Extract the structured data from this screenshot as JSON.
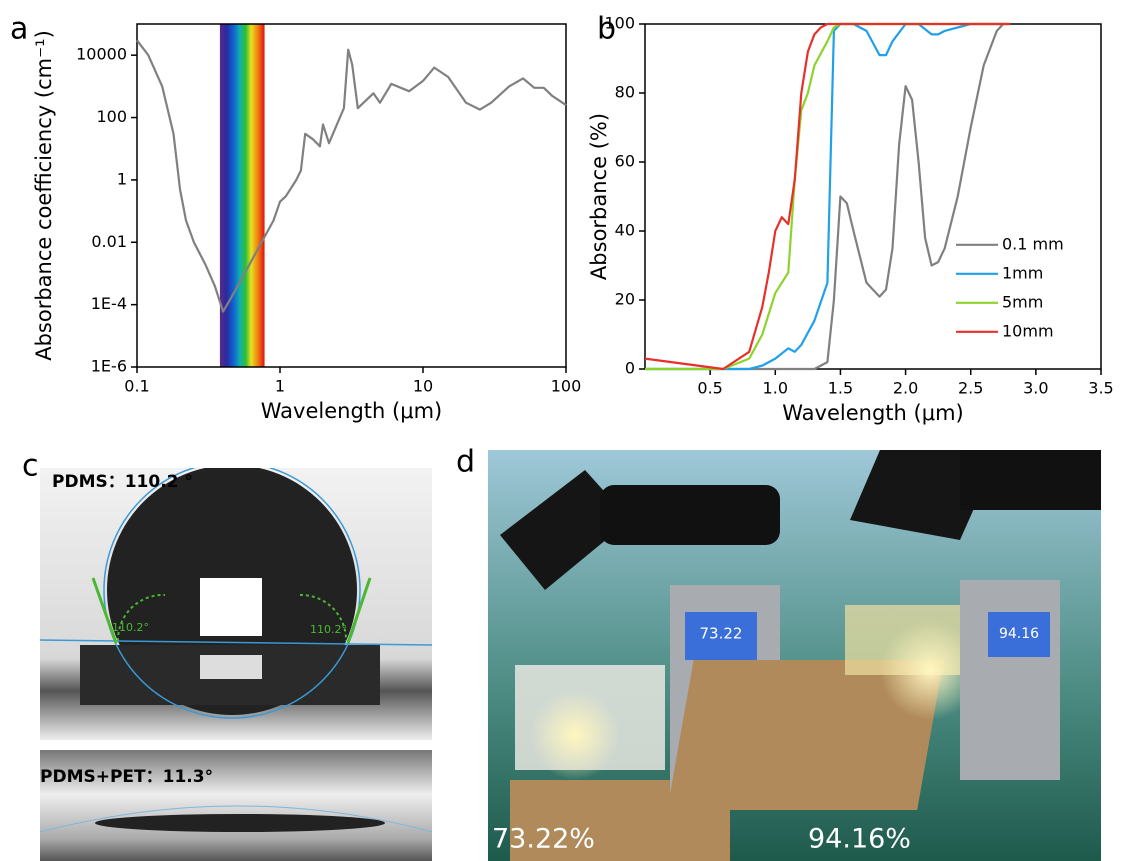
{
  "chart_data": [
    {
      "type": "line",
      "panel_label": "a",
      "x_label": "Wavelength (μm)",
      "y_label": "Absorbance coefficiency (cm⁻¹)",
      "x_log": true,
      "y_log": true,
      "color": "#808080",
      "xlim": [
        0.1,
        100
      ],
      "xticks": [
        0.1,
        1,
        10,
        100
      ],
      "ylim": [
        1e-06,
        100000
      ],
      "yticks": [
        {
          "value": 1e-06,
          "label": "1E-6"
        },
        {
          "value": 0.0001,
          "label": "1E-4"
        },
        0.01,
        1,
        100,
        10000
      ],
      "highlight_band": [
        0.38,
        0.78
      ],
      "x": [
        0.1,
        0.12,
        0.15,
        0.18,
        0.2,
        0.22,
        0.25,
        0.3,
        0.35,
        0.4,
        0.45,
        0.55,
        0.7,
        0.9,
        1.0,
        1.1,
        1.3,
        1.4,
        1.5,
        1.7,
        1.9,
        2.0,
        2.2,
        2.5,
        2.8,
        3.0,
        3.2,
        3.5,
        4.5,
        5,
        6,
        8,
        10,
        12,
        15,
        20,
        25,
        30,
        40,
        50,
        60,
        70,
        80,
        100
      ],
      "values": [
        30000,
        10000,
        1000,
        30,
        0.5,
        0.05,
        0.01,
        0.002,
        0.0004,
        6e-05,
        0.00015,
        0.0008,
        0.006,
        0.05,
        0.2,
        0.3,
        1,
        2,
        30,
        20,
        12,
        60,
        15,
        60,
        200,
        15000,
        5000,
        200,
        600,
        300,
        1200,
        700,
        1500,
        4000,
        2000,
        300,
        180,
        300,
        1000,
        1800,
        900,
        900,
        500,
        250
      ]
    },
    {
      "type": "line",
      "panel_label": "b",
      "x_label": "Wavelength (μm)",
      "y_label": "Absorbance (%)",
      "legend": "right",
      "xlim": [
        0,
        3.5
      ],
      "xticks": [
        0.5,
        {
          "value": 1,
          "label": "1.0"
        },
        1.5,
        {
          "value": 2,
          "label": "2.0"
        },
        2.5,
        {
          "value": 3,
          "label": "3.0"
        },
        3.5
      ],
      "ylim": [
        0,
        100
      ],
      "yticks": [
        0,
        20,
        40,
        60,
        80,
        100
      ],
      "series": [
        {
          "name": "0.1 mm",
          "color": "#808080",
          "x": [
            0,
            1.0,
            1.3,
            1.4,
            1.45,
            1.5,
            1.55,
            1.6,
            1.7,
            1.8,
            1.85,
            1.9,
            1.95,
            2.0,
            2.05,
            2.1,
            2.15,
            2.2,
            2.25,
            2.3,
            2.4,
            2.5,
            2.6,
            2.7,
            2.75
          ],
          "values": [
            0,
            0,
            0,
            2,
            20,
            50,
            48,
            40,
            25,
            21,
            23,
            35,
            65,
            82,
            78,
            60,
            38,
            30,
            31,
            35,
            50,
            70,
            88,
            98,
            100
          ]
        },
        {
          "name": "1mm",
          "color": "#1fa0e8",
          "x": [
            0,
            0.8,
            0.9,
            1.0,
            1.1,
            1.15,
            1.2,
            1.3,
            1.4,
            1.45,
            1.5,
            1.6,
            1.7,
            1.8,
            1.85,
            1.9,
            2.0,
            2.1,
            2.2,
            2.25,
            2.3,
            2.5,
            2.8
          ],
          "values": [
            0,
            0,
            1,
            3,
            6,
            5,
            7,
            14,
            25,
            98,
            100,
            100,
            98,
            91,
            91,
            95,
            100,
            100,
            97,
            97,
            98,
            100,
            100
          ]
        },
        {
          "name": "5mm",
          "color": "#8cd42c",
          "x": [
            0,
            0.6,
            0.8,
            0.9,
            1.0,
            1.05,
            1.1,
            1.15,
            1.2,
            1.25,
            1.3,
            1.4,
            1.45,
            1.5,
            2.8
          ],
          "values": [
            0,
            0,
            3,
            10,
            22,
            25,
            28,
            55,
            75,
            80,
            88,
            95,
            99,
            100,
            100
          ]
        },
        {
          "name": "10mm",
          "color": "#e8302a",
          "x": [
            0,
            0.6,
            0.8,
            0.9,
            0.95,
            1.0,
            1.05,
            1.1,
            1.15,
            1.2,
            1.25,
            1.3,
            1.35,
            1.4,
            2.8
          ],
          "values": [
            3,
            0,
            5,
            18,
            28,
            40,
            44,
            42,
            55,
            80,
            92,
            97,
            99,
            100,
            100
          ]
        }
      ]
    }
  ],
  "photos": {
    "c": {
      "label": "c",
      "top": {
        "title": "PDMS：110.2 °",
        "left_angle": "110.2°",
        "right_angle": "110.2°"
      },
      "bottom": {
        "title": "PDMS+PET：11.3°"
      }
    },
    "d": {
      "label": "d",
      "left": {
        "reading": "73.22",
        "caption": "73.22%"
      },
      "right": {
        "reading": "94.16",
        "caption": "94.16%"
      }
    }
  }
}
